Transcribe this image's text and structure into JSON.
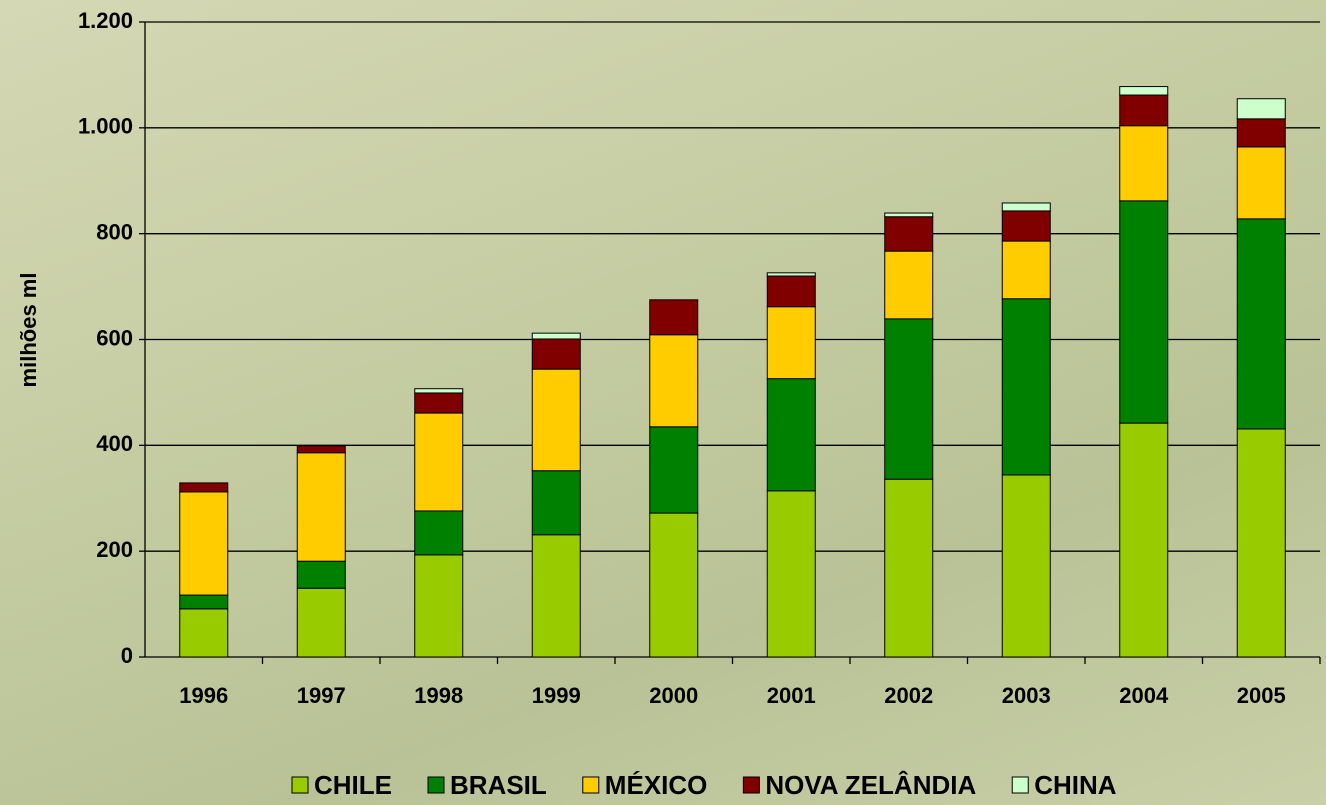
{
  "chart_data": {
    "type": "stacked_bar",
    "y_label": "milhões ml",
    "categories": [
      "1996",
      "1997",
      "1998",
      "1999",
      "2000",
      "2001",
      "2002",
      "2003",
      "2004",
      "2005"
    ],
    "series": [
      {
        "name": "CHILE",
        "color": "#99cc00",
        "values": [
          91,
          130,
          193,
          231,
          272,
          314,
          336,
          344,
          442,
          431
        ]
      },
      {
        "name": "BRASIL",
        "color": "#008000",
        "values": [
          26,
          51,
          83,
          121,
          163,
          212,
          303,
          333,
          420,
          397
        ]
      },
      {
        "name": "MÉXICO",
        "color": "#ffcc00",
        "values": [
          195,
          205,
          185,
          192,
          174,
          136,
          128,
          109,
          142,
          136
        ]
      },
      {
        "name": "NOVA ZELÂNDIA",
        "color": "#800000",
        "values": [
          17,
          13,
          38,
          57,
          66,
          58,
          65,
          57,
          58,
          53
        ]
      },
      {
        "name": "CHINA",
        "color": "#ccffcc",
        "values": [
          0,
          0,
          8,
          11,
          0,
          6,
          7,
          15,
          16,
          38
        ]
      }
    ],
    "ylim": [
      0,
      1200
    ],
    "yticks": [
      0,
      200,
      400,
      600,
      800,
      {
        "value": 1000,
        "label": "1.000"
      },
      {
        "value": 1200,
        "label": "1.200"
      }
    ],
    "grid": true,
    "legend": "bottom"
  }
}
